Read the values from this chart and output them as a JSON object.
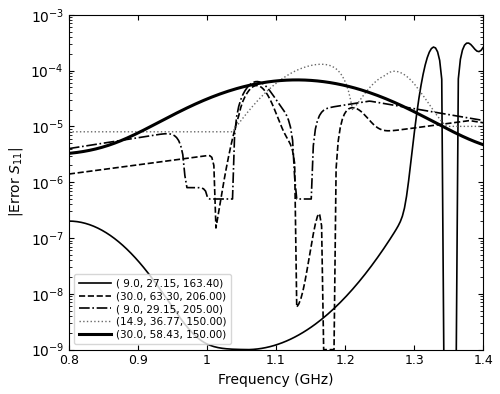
{
  "xlabel": "Frequency (GHz)",
  "ylabel": "|Error $S_{11}$|",
  "xlim": [
    0.8,
    1.4
  ],
  "ylim": [
    1e-09,
    0.001
  ],
  "legend_labels": [
    "( 9.0, 27.15, 163.40)",
    "(30.0, 63.30, 206.00)",
    "( 9.0, 29.15, 205.00)",
    "(14.9, 36.77, 150.00)",
    "(30.0, 58.43, 150.00)"
  ],
  "line_styles": [
    "-",
    "--",
    "-.",
    ":",
    "-"
  ],
  "line_widths": [
    1.2,
    1.2,
    1.2,
    1.0,
    2.2
  ],
  "colors": [
    "black",
    "black",
    "black",
    "dimgray",
    "black"
  ]
}
